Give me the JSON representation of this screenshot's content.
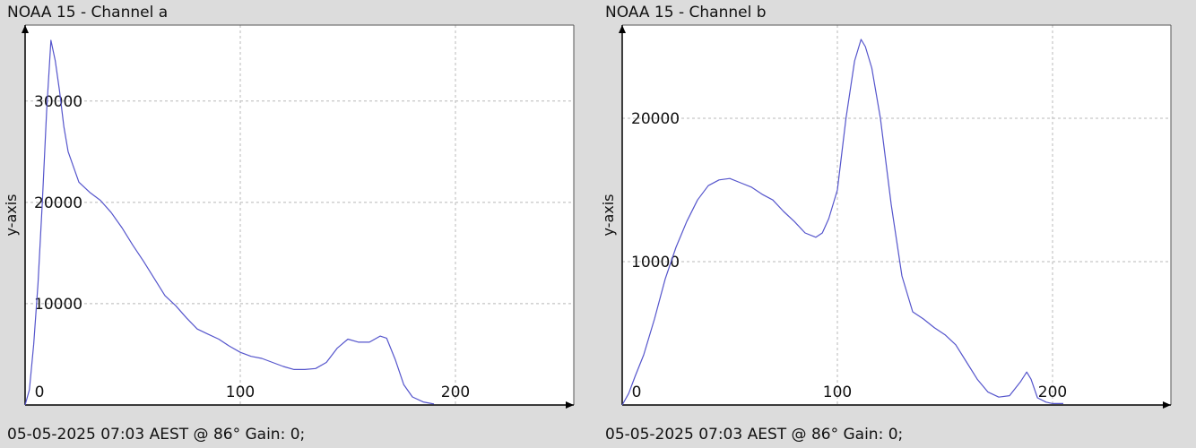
{
  "chart_data": [
    {
      "type": "line",
      "title": "NOAA 15 - Channel a",
      "footer": "05-05-2025 07:03 AEST @ 86° Gain: 0;",
      "xlabel": "",
      "ylabel": "y-axis",
      "xlim": [
        0,
        255
      ],
      "ylim": [
        0,
        37500
      ],
      "x_ticks": [
        0,
        100,
        200
      ],
      "y_ticks": [
        10000,
        20000,
        30000
      ],
      "grid": true,
      "series": [
        {
          "color": "#5555cc",
          "x": [
            0,
            2,
            4,
            6,
            8,
            10,
            12,
            14,
            16,
            18,
            20,
            25,
            30,
            35,
            40,
            45,
            50,
            55,
            60,
            65,
            70,
            75,
            80,
            85,
            90,
            95,
            100,
            105,
            110,
            115,
            120,
            125,
            130,
            135,
            140,
            145,
            150,
            155,
            160,
            165,
            168,
            172,
            176,
            180,
            185,
            190
          ],
          "y": [
            0,
            1500,
            6000,
            12000,
            20000,
            29000,
            36000,
            34000,
            31000,
            27500,
            25000,
            22000,
            21000,
            20200,
            19000,
            17500,
            15800,
            14200,
            12500,
            10800,
            9800,
            8600,
            7500,
            7000,
            6500,
            5800,
            5200,
            4800,
            4600,
            4200,
            3800,
            3500,
            3500,
            3600,
            4200,
            5600,
            6500,
            6200,
            6200,
            6800,
            6600,
            4500,
            2000,
            800,
            300,
            100
          ]
        }
      ]
    },
    {
      "type": "line",
      "title": "NOAA 15 - Channel b",
      "footer": "05-05-2025 07:03 AEST @ 86° Gain: 0;",
      "xlabel": "",
      "ylabel": "y-axis",
      "xlim": [
        0,
        255
      ],
      "ylim": [
        0,
        26500
      ],
      "x_ticks": [
        0,
        100,
        200
      ],
      "y_ticks": [
        10000,
        20000
      ],
      "grid": true,
      "series": [
        {
          "color": "#5555cc",
          "x": [
            0,
            3,
            6,
            10,
            15,
            20,
            25,
            30,
            35,
            40,
            45,
            50,
            55,
            60,
            65,
            70,
            75,
            80,
            85,
            90,
            93,
            96,
            100,
            104,
            108,
            111,
            113,
            116,
            120,
            125,
            130,
            135,
            140,
            145,
            150,
            155,
            160,
            165,
            170,
            175,
            180,
            185,
            188,
            190,
            193,
            197,
            200,
            205
          ],
          "y": [
            0,
            800,
            2000,
            3500,
            6000,
            8800,
            11000,
            12800,
            14300,
            15300,
            15700,
            15800,
            15500,
            15200,
            14700,
            14300,
            13500,
            12800,
            12000,
            11700,
            12000,
            13000,
            15000,
            20000,
            24000,
            25500,
            25000,
            23500,
            20000,
            14000,
            9000,
            6500,
            6000,
            5400,
            4900,
            4200,
            3000,
            1800,
            900,
            550,
            650,
            1600,
            2300,
            1800,
            500,
            200,
            100,
            100
          ]
        }
      ]
    }
  ]
}
